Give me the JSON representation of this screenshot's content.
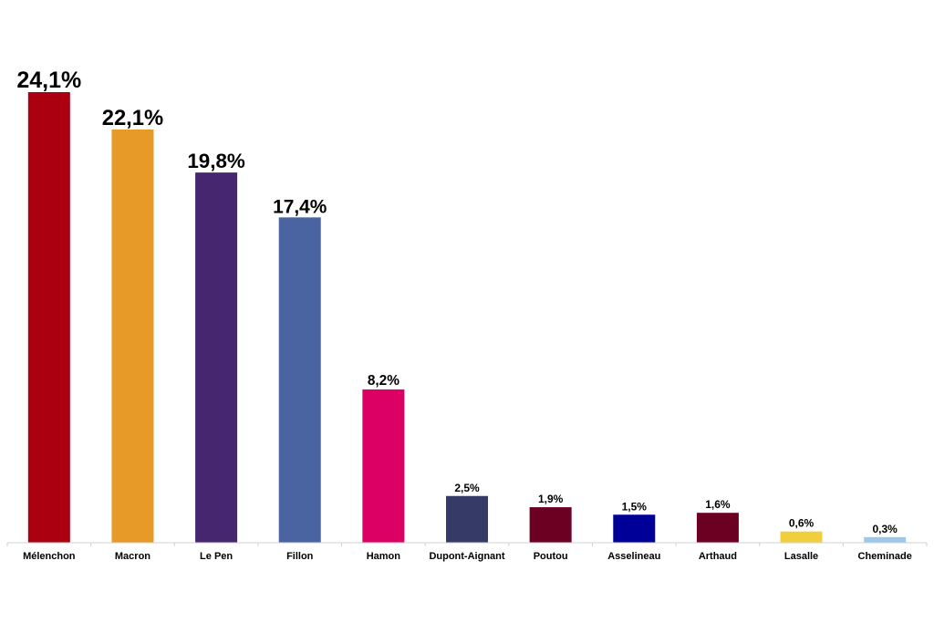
{
  "chart_data": {
    "type": "bar",
    "title": "",
    "xlabel": "",
    "ylabel": "",
    "ylim": [
      0,
      24.1
    ],
    "grid": false,
    "legend": "none",
    "categories": [
      "Mélenchon",
      "Macron",
      "Le Pen",
      "Fillon",
      "Hamon",
      "Dupont-Aignant",
      "Poutou",
      "Asselineau",
      "Arthaud",
      "Lasalle",
      "Cheminade"
    ],
    "values": [
      24.1,
      22.1,
      19.8,
      17.4,
      8.2,
      2.5,
      1.9,
      1.5,
      1.6,
      0.6,
      0.3
    ],
    "value_labels": [
      "24,1%",
      "22,1%",
      "19,8%",
      "17,4%",
      "8,2%",
      "2,5%",
      "1,9%",
      "1,5%",
      "1,6%",
      "0,6%",
      "0,3%"
    ],
    "colors": [
      "#AA0010",
      "#E89A28",
      "#46266E",
      "#4A64A2",
      "#DC0064",
      "#363A66",
      "#6B0022",
      "#000099",
      "#6B0022",
      "#F2CF3A",
      "#9CC8EE"
    ]
  }
}
